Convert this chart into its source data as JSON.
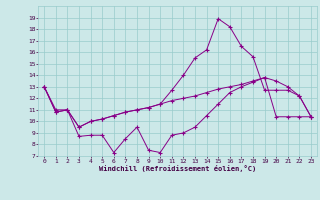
{
  "background_color": "#cce8e8",
  "line_color": "#880088",
  "grid_color": "#99cccc",
  "xlabel": "Windchill (Refroidissement éolien,°C)",
  "ylim": [
    7,
    20
  ],
  "xlim": [
    -0.5,
    23.5
  ],
  "yticks": [
    7,
    8,
    9,
    10,
    11,
    12,
    13,
    14,
    15,
    16,
    17,
    18,
    19
  ],
  "xticks": [
    0,
    1,
    2,
    3,
    4,
    5,
    6,
    7,
    8,
    9,
    10,
    11,
    12,
    13,
    14,
    15,
    16,
    17,
    18,
    19,
    20,
    21,
    22,
    23
  ],
  "series": [
    {
      "x": [
        0,
        1,
        2,
        3,
        4,
        5,
        6,
        7,
        8,
        9,
        10,
        11,
        12,
        13,
        14,
        15,
        16,
        17,
        18,
        19,
        20,
        21,
        22,
        23
      ],
      "y": [
        13.0,
        11.0,
        11.0,
        8.7,
        8.8,
        8.8,
        7.3,
        8.5,
        9.5,
        7.5,
        7.3,
        8.8,
        9.0,
        9.5,
        10.5,
        11.5,
        12.5,
        13.0,
        13.4,
        13.8,
        10.4,
        10.4,
        10.4,
        10.4
      ]
    },
    {
      "x": [
        0,
        1,
        2,
        3,
        4,
        5,
        6,
        7,
        8,
        9,
        10,
        11,
        12,
        13,
        14,
        15,
        16,
        17,
        18,
        19,
        20,
        21,
        22,
        23
      ],
      "y": [
        13.0,
        10.8,
        11.0,
        9.5,
        10.0,
        10.2,
        10.5,
        10.8,
        11.0,
        11.2,
        11.5,
        11.8,
        12.0,
        12.2,
        12.5,
        12.8,
        13.0,
        13.2,
        13.5,
        13.8,
        13.5,
        13.0,
        12.2,
        10.4
      ]
    },
    {
      "x": [
        0,
        1,
        2,
        3,
        4,
        5,
        6,
        7,
        8,
        9,
        10,
        11,
        12,
        13,
        14,
        15,
        16,
        17,
        18,
        19,
        20,
        21,
        22,
        23
      ],
      "y": [
        13.0,
        10.8,
        11.0,
        9.5,
        10.0,
        10.2,
        10.5,
        10.8,
        11.0,
        11.2,
        11.5,
        12.7,
        14.0,
        15.5,
        16.2,
        18.9,
        18.2,
        16.5,
        15.6,
        12.7,
        12.7,
        12.7,
        12.2,
        10.4
      ]
    }
  ]
}
